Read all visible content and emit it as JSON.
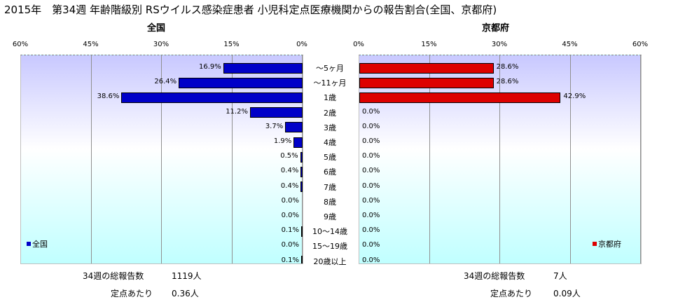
{
  "title": "2015年　第34週 年齢階級別 RSウイルス感染症患者 小児科定点医療機関からの報告割合(全国、京都府)",
  "chart_data": {
    "type": "bar",
    "orientation": "horizontal-butterfly",
    "categories": [
      "～5ヶ月",
      "～11ヶ月",
      "1歳",
      "2歳",
      "3歳",
      "4歳",
      "5歳",
      "6歳",
      "7歳",
      "8歳",
      "9歳",
      "10～14歳",
      "15～19歳",
      "20歳以上"
    ],
    "xlim": [
      0,
      60
    ],
    "tick_labels": [
      "0%",
      "15%",
      "30%",
      "45%",
      "60%"
    ],
    "series": [
      {
        "name": "全国",
        "panel_title": "全国",
        "color": "#0000c8",
        "values": [
          16.9,
          26.4,
          38.6,
          11.2,
          3.7,
          1.9,
          0.5,
          0.4,
          0.4,
          0.0,
          0.0,
          0.1,
          0.0,
          0.1
        ]
      },
      {
        "name": "京都府",
        "panel_title": "京都府",
        "color": "#dd0000",
        "values": [
          28.6,
          28.6,
          42.9,
          0.0,
          0.0,
          0.0,
          0.0,
          0.0,
          0.0,
          0.0,
          0.0,
          0.0,
          0.0,
          0.0
        ]
      }
    ],
    "legend_position": "bottom-inside",
    "grid": true
  },
  "footer": {
    "national": {
      "total_label": "34週の総報告数",
      "total_value": "1119人",
      "per_label": "定点あたり",
      "per_value": "0.36人"
    },
    "kyoto": {
      "total_label": "34週の総報告数",
      "total_value": "7人",
      "per_label": "定点あたり",
      "per_value": "0.09人"
    }
  }
}
